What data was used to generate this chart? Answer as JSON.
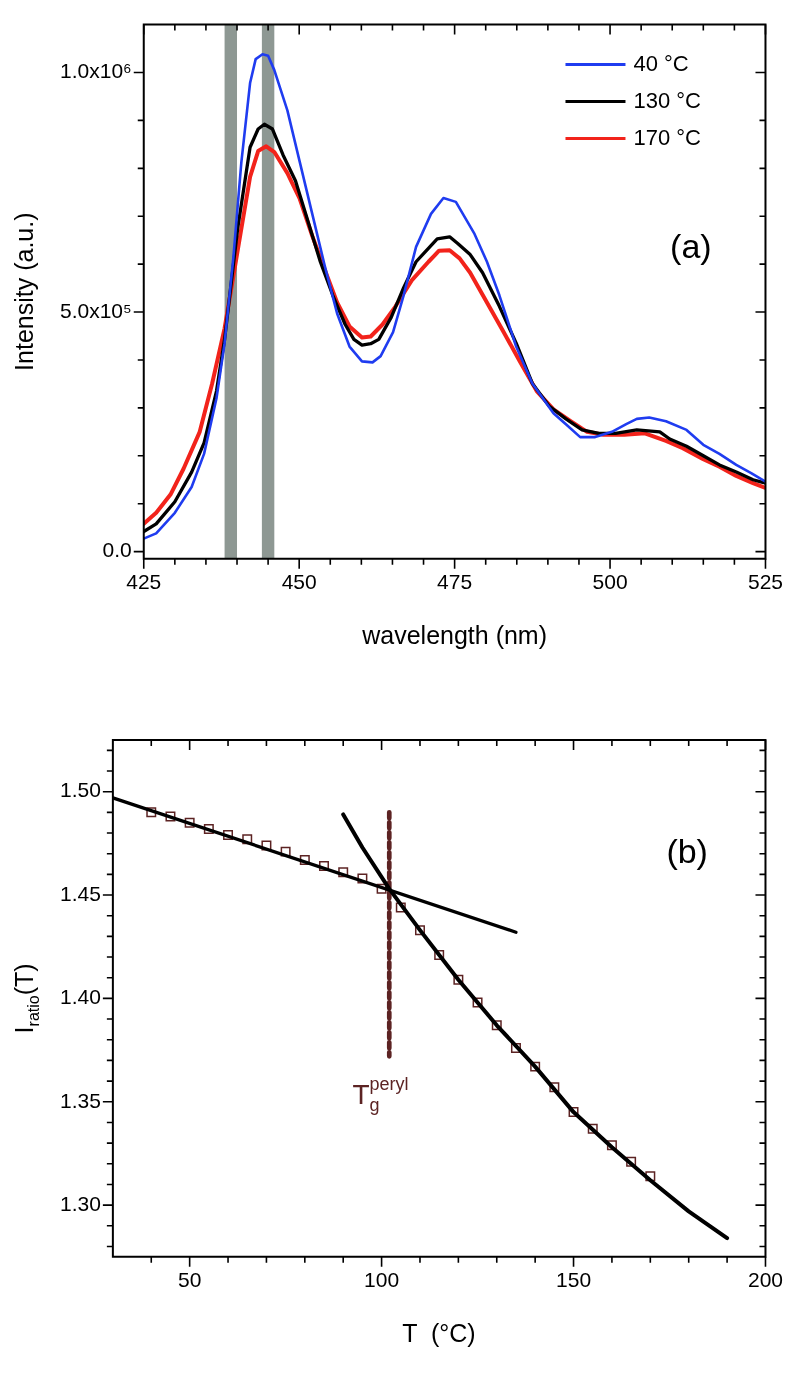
{
  "chart_data": [
    {
      "type": "line",
      "xlabel": "wavelength (nm)",
      "ylabel": "Intensity (a.u.)",
      "xlim": [
        425,
        525
      ],
      "ylim": [
        -15000,
        1100000
      ],
      "xticks": [
        425,
        {
          "value": 430,
          "label": null
        },
        {
          "value": 435,
          "label": null
        },
        {
          "value": 440,
          "label": null
        },
        {
          "value": 445,
          "label": null
        },
        450,
        {
          "value": 455,
          "label": null
        },
        {
          "value": 460,
          "label": null
        },
        {
          "value": 465,
          "label": null
        },
        {
          "value": 470,
          "label": null
        },
        475,
        {
          "value": 480,
          "label": null
        },
        {
          "value": 485,
          "label": null
        },
        {
          "value": 490,
          "label": null
        },
        {
          "value": 495,
          "label": null
        },
        500,
        {
          "value": 505,
          "label": null
        },
        {
          "value": 510,
          "label": null
        },
        {
          "value": 515,
          "label": null
        },
        {
          "value": 520,
          "label": null
        },
        525
      ],
      "yticks": [
        {
          "value": 0,
          "label": "0.0"
        },
        {
          "value": 100000,
          "label": null
        },
        {
          "value": 200000,
          "label": null
        },
        {
          "value": 300000,
          "label": null
        },
        {
          "value": 400000,
          "label": null
        },
        {
          "value": 500000,
          "label": "5.0x10⁵"
        },
        {
          "value": 600000,
          "label": null
        },
        {
          "value": 700000,
          "label": null
        },
        {
          "value": 800000,
          "label": null
        },
        {
          "value": 900000,
          "label": null
        },
        {
          "value": 1000000,
          "label": "1.0x10⁶"
        }
      ],
      "grid": false,
      "legend": "top right",
      "marker": "none",
      "line_style": "solid",
      "bands": [
        {
          "axis": "x",
          "from": 438,
          "to": 440,
          "color": "#8e9893"
        },
        {
          "axis": "x",
          "from": 444,
          "to": 446,
          "color": "#8e9893"
        }
      ],
      "annotations": [
        "(a)"
      ],
      "series": [
        {
          "name": "40 °C",
          "color": "#1f3cf0",
          "x": [
            425,
            427,
            430,
            432.7,
            434.7,
            436.7,
            438,
            439.4,
            440.7,
            442.1,
            443,
            444.1,
            445,
            446,
            448.1,
            450.1,
            452.1,
            454.1,
            456.1,
            458.1,
            460.1,
            461.8,
            463.1,
            465.1,
            466.8,
            468.8,
            471.2,
            473.2,
            475.2,
            478.2,
            480.2,
            482.2,
            484.9,
            487.5,
            490.9,
            492.9,
            495.2,
            497.6,
            500.3,
            502.6,
            504.3,
            506.3,
            509,
            512.3,
            515,
            517.6,
            520.3,
            522.7,
            525
          ],
          "values": [
            27000,
            38000,
            81000,
            135000,
            204000,
            320000,
            435000,
            612000,
            813000,
            978000,
            1028000,
            1038000,
            1035000,
            1005000,
            921000,
            813000,
            705000,
            597000,
            497000,
            428000,
            397000,
            395000,
            408000,
            458000,
            535000,
            636000,
            705000,
            738000,
            730000,
            663000,
            605000,
            535000,
            428000,
            351000,
            289000,
            266000,
            239000,
            239000,
            250000,
            266000,
            277000,
            280000,
            272000,
            254000,
            223000,
            204000,
            181000,
            164000,
            146000
          ]
        },
        {
          "name": "130 °C",
          "color": "#000000",
          "x": [
            425,
            427,
            430,
            432.7,
            434.7,
            436.7,
            438,
            440.1,
            442.1,
            443.4,
            444.4,
            445.7,
            447.4,
            449.4,
            451.4,
            453.4,
            455.4,
            457.4,
            458.8,
            460.1,
            461.5,
            462.8,
            464.8,
            466.8,
            468.8,
            472.2,
            474.2,
            475.5,
            477.5,
            479.5,
            482.2,
            484.9,
            487.5,
            490.2,
            492.9,
            495.5,
            498.2,
            500.9,
            504.3,
            508,
            509.6,
            512.3,
            515,
            517.6,
            520.3,
            523,
            525
          ],
          "values": [
            42000,
            58000,
            104000,
            166000,
            227000,
            335000,
            443000,
            674000,
            844000,
            882000,
            892000,
            882000,
            828000,
            774000,
            690000,
            605000,
            535000,
            474000,
            443000,
            431000,
            434000,
            443000,
            489000,
            551000,
            605000,
            653000,
            657000,
            643000,
            620000,
            582000,
            512000,
            435000,
            351000,
            304000,
            277000,
            254000,
            247000,
            247000,
            254000,
            250000,
            235000,
            220000,
            200000,
            181000,
            166000,
            150000,
            143000
          ]
        },
        {
          "name": "170 °C",
          "color": "#f2231b",
          "x": [
            425,
            427,
            429.3,
            431.4,
            434,
            436,
            438,
            440.1,
            442.1,
            443.4,
            444.7,
            446,
            448.1,
            450.1,
            452.1,
            454.1,
            456.1,
            458.1,
            460.1,
            461.5,
            463.4,
            465.5,
            468.1,
            470.8,
            472.5,
            474.2,
            475.8,
            477.5,
            480.2,
            482.9,
            485.5,
            488.2,
            490.9,
            493.6,
            496.3,
            498.9,
            502.3,
            505.6,
            509,
            511.7,
            515,
            517.6,
            520.3,
            523,
            525
          ],
          "values": [
            58000,
            81000,
            119000,
            173000,
            250000,
            351000,
            466000,
            628000,
            782000,
            836000,
            846000,
            834000,
            790000,
            736000,
            659000,
            589000,
            520000,
            470000,
            447000,
            449000,
            474000,
            512000,
            566000,
            605000,
            628000,
            629000,
            612000,
            582000,
            520000,
            458000,
            397000,
            335000,
            297000,
            273000,
            250000,
            244000,
            244000,
            247000,
            231000,
            216000,
            193000,
            177000,
            158000,
            143000,
            133000
          ]
        }
      ]
    },
    {
      "type": "scatter",
      "xlabel": "T  (°C)",
      "ylabel": "I$_{ratio}$(T)",
      "xlim": [
        30,
        200
      ],
      "ylim": [
        1.275,
        1.525
      ],
      "xticks": [
        {
          "value": 40,
          "label": null
        },
        50,
        {
          "value": 60,
          "label": null
        },
        {
          "value": 70,
          "label": null
        },
        {
          "value": 80,
          "label": null
        },
        {
          "value": 90,
          "label": null
        },
        100,
        {
          "value": 110,
          "label": null
        },
        {
          "value": 120,
          "label": null
        },
        {
          "value": 130,
          "label": null
        },
        {
          "value": 140,
          "label": null
        },
        150,
        {
          "value": 160,
          "label": null
        },
        {
          "value": 170,
          "label": null
        },
        {
          "value": 180,
          "label": null
        },
        {
          "value": 190,
          "label": null
        },
        200
      ],
      "yticks": [
        {
          "value": 1.28,
          "label": null
        },
        {
          "value": 1.29,
          "label": null
        },
        {
          "value": 1.3,
          "label": "1.30"
        },
        {
          "value": 1.31,
          "label": null
        },
        {
          "value": 1.32,
          "label": null
        },
        {
          "value": 1.33,
          "label": null
        },
        {
          "value": 1.34,
          "label": null
        },
        {
          "value": 1.35,
          "label": "1.35"
        },
        {
          "value": 1.36,
          "label": null
        },
        {
          "value": 1.37,
          "label": null
        },
        {
          "value": 1.38,
          "label": null
        },
        {
          "value": 1.39,
          "label": null
        },
        {
          "value": 1.4,
          "label": "1.40"
        },
        {
          "value": 1.41,
          "label": null
        },
        {
          "value": 1.42,
          "label": null
        },
        {
          "value": 1.43,
          "label": null
        },
        {
          "value": 1.44,
          "label": null
        },
        {
          "value": 1.45,
          "label": "1.45"
        },
        {
          "value": 1.46,
          "label": null
        },
        {
          "value": 1.47,
          "label": null
        },
        {
          "value": 1.48,
          "label": null
        },
        {
          "value": 1.49,
          "label": null
        },
        {
          "value": 1.5,
          "label": "1.50"
        },
        {
          "value": 1.51,
          "label": null
        },
        {
          "value": 1.52,
          "label": null
        }
      ],
      "grid": false,
      "marker": "square",
      "annotations": [
        "(b)",
        "T$_{g}$$^{peryl}$"
      ],
      "series": [
        {
          "color": "#5c2323",
          "x": [
            40,
            45,
            50,
            55,
            60,
            65,
            70,
            75,
            80,
            85,
            90,
            95,
            100,
            105,
            110,
            115,
            120,
            125,
            130,
            135,
            140,
            145,
            150,
            155,
            160,
            165,
            170
          ],
          "values": [
            1.49,
            1.488,
            1.485,
            1.482,
            1.479,
            1.477,
            1.474,
            1.471,
            1.467,
            1.464,
            1.461,
            1.458,
            1.453,
            1.444,
            1.433,
            1.421,
            1.409,
            1.398,
            1.387,
            1.376,
            1.367,
            1.357,
            1.345,
            1.337,
            1.329,
            1.321,
            1.314
          ]
        },
        {
          "type": "line",
          "color": "#000000",
          "marker": "none",
          "line_style": "solid",
          "x": [
            30,
            135
          ],
          "values": [
            1.497,
            1.432
          ]
        },
        {
          "type": "line",
          "color": "#000000",
          "marker": "none",
          "line_style": "solid",
          "x": [
            90,
            95,
            102,
            110,
            120,
            130,
            140,
            150,
            160,
            170,
            180,
            190
          ],
          "values": [
            1.489,
            1.473,
            1.453,
            1.433,
            1.409,
            1.387,
            1.367,
            1.345,
            1.328,
            1.312,
            1.297,
            1.284
          ]
        },
        {
          "type": "line",
          "color": "#5c2323",
          "marker": "none",
          "line_style": "dashed",
          "x": [
            102,
            102
          ],
          "values": [
            1.49,
            1.372
          ]
        }
      ]
    }
  ]
}
